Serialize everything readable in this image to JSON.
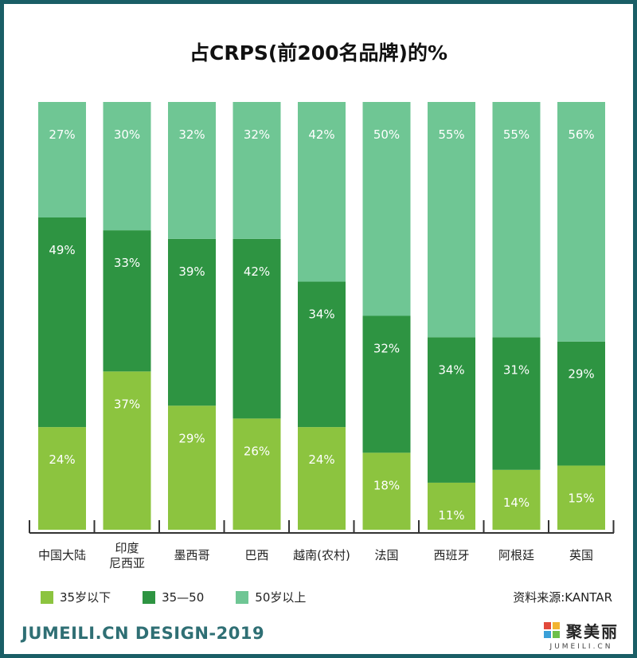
{
  "title": "占CRPS(前200名品牌)的%",
  "colors": {
    "under35": "#8cc43f",
    "mid": "#2e9442",
    "over50": "#6fc694",
    "border": "#1a5e66",
    "axis": "#333333"
  },
  "chart_data": {
    "type": "bar",
    "stacked": true,
    "percent": true,
    "title": "占CRPS(前200名品牌)的%",
    "categories": [
      [
        "中国大陆"
      ],
      [
        "印度",
        "尼西亚"
      ],
      [
        "墨西哥"
      ],
      [
        "巴西"
      ],
      [
        "越南(农村)"
      ],
      [
        "法国"
      ],
      [
        "西班牙"
      ],
      [
        "阿根廷"
      ],
      [
        "英国"
      ]
    ],
    "series": [
      {
        "name": "35岁以下",
        "color": "#8cc43f",
        "values": [
          24,
          37,
          29,
          26,
          24,
          18,
          11,
          14,
          15
        ]
      },
      {
        "name": "35—50",
        "color": "#2e9442",
        "values": [
          49,
          33,
          39,
          42,
          34,
          32,
          34,
          31,
          29
        ]
      },
      {
        "name": "50岁以上",
        "color": "#6fc694",
        "values": [
          27,
          30,
          32,
          32,
          42,
          50,
          55,
          55,
          56
        ]
      }
    ],
    "ylim": [
      0,
      100
    ]
  },
  "legend": [
    {
      "label": "35岁以下",
      "color": "#8cc43f"
    },
    {
      "label": "35—50",
      "color": "#2e9442"
    },
    {
      "label": "50岁以上",
      "color": "#6fc694"
    }
  ],
  "source": "资料来源:KANTAR",
  "footer": {
    "left": "JUMEILI.CN DESIGN-2019",
    "brand_name": "聚美丽",
    "brand_sub": "JUMEILI.CN"
  }
}
